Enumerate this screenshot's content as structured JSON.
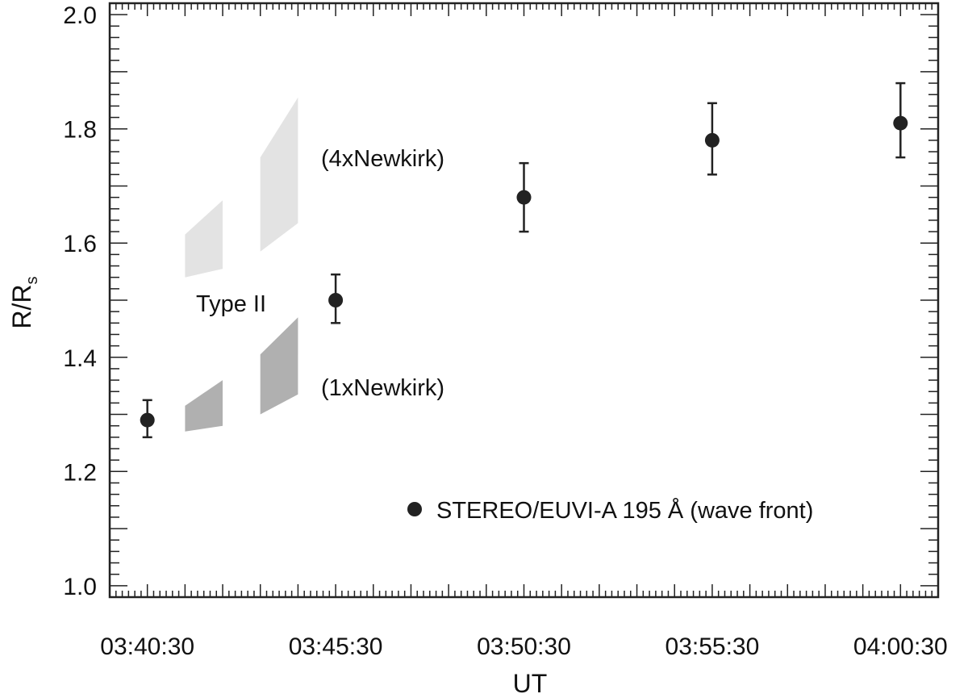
{
  "chart_data": {
    "type": "scatter",
    "title": "",
    "xlabel": "UT",
    "ylabel": {
      "main": "R/R",
      "sub": "s"
    },
    "x_tick_labels": [
      "03:40:30",
      "03:45:30",
      "03:50:30",
      "03:55:30",
      "04:00:30"
    ],
    "x_tick_values_min": [
      0,
      5,
      10,
      15,
      20
    ],
    "xlim_min": [
      -1,
      21
    ],
    "y_tick_labels": [
      "1.0",
      "1.2",
      "1.4",
      "1.6",
      "1.8",
      "2.0"
    ],
    "y_tick_values": [
      1.0,
      1.2,
      1.4,
      1.6,
      1.8,
      2.0
    ],
    "ylim": [
      0.98,
      2.02
    ],
    "grid": false,
    "series": [
      {
        "name": "STEREO/EUVI-A 195 Å (wave front)",
        "color": "#222222",
        "x_min": [
          0,
          5,
          10,
          15,
          20
        ],
        "x": [
          "03:40:30",
          "03:45:30",
          "03:50:30",
          "03:55:30",
          "04:00:30"
        ],
        "y": [
          1.29,
          1.5,
          1.68,
          1.78,
          1.81
        ],
        "y_err_low": [
          1.26,
          1.46,
          1.62,
          1.72,
          1.75
        ],
        "y_err_high": [
          1.325,
          1.545,
          1.74,
          1.845,
          1.88
        ]
      }
    ],
    "bands": [
      {
        "group": "4xNewkirk",
        "color": "#e3e3e3",
        "x_min": [
          1,
          2
        ],
        "y_bottom": [
          1.54,
          1.555
        ],
        "y_top": [
          1.615,
          1.675
        ]
      },
      {
        "group": "4xNewkirk",
        "color": "#e3e3e3",
        "x_min": [
          3,
          4
        ],
        "y_bottom": [
          1.585,
          1.635
        ],
        "y_top": [
          1.75,
          1.855
        ]
      },
      {
        "group": "1xNewkirk",
        "color": "#b0b0b0",
        "x_min": [
          1,
          2
        ],
        "y_bottom": [
          1.27,
          1.28
        ],
        "y_top": [
          1.315,
          1.36
        ]
      },
      {
        "group": "1xNewkirk",
        "color": "#b0b0b0",
        "x_min": [
          3,
          4
        ],
        "y_bottom": [
          1.3,
          1.335
        ],
        "y_top": [
          1.405,
          1.47
        ]
      }
    ],
    "annotations": {
      "four_newkirk": "(4xNewkirk)",
      "type_ii": "Type II",
      "one_newkirk": "(1xNewkirk)"
    },
    "legend": {
      "label": "STEREO/EUVI-A 195 Å (wave front)",
      "placement": "bottom-right"
    }
  }
}
